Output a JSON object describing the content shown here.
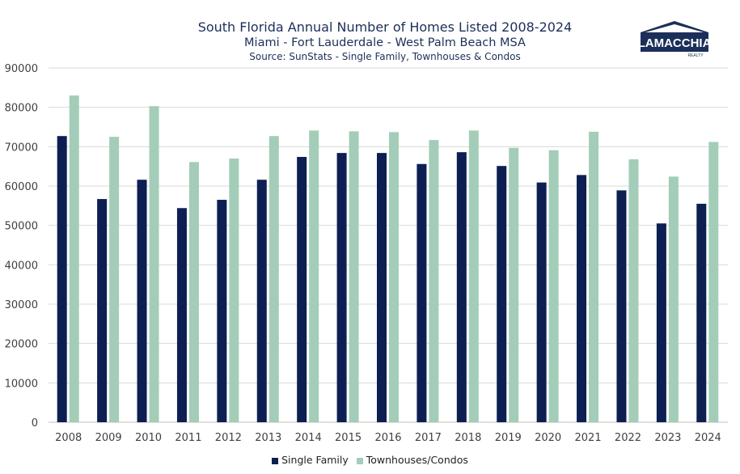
{
  "header": {
    "title": "South Florida Annual Number of Homes Listed 2008-2024",
    "subtitle": "Miami - Fort Lauderdale - West Palm Beach MSA",
    "source": "Source: SunStats - Single Family, Townhouses & Condos"
  },
  "logo": {
    "name": "LAMACCHIA",
    "tag": "REALTY",
    "icon": "house-roof-icon"
  },
  "colors": {
    "single_family": "#0d1f52",
    "townhouses": "#a3cdb8",
    "grid": "#d9d9d9",
    "axis": "#bfbfbf"
  },
  "chart_data": {
    "type": "bar",
    "title": "South Florida Annual Number of Homes Listed 2008-2024",
    "categories": [
      "2008",
      "2009",
      "2010",
      "2011",
      "2012",
      "2013",
      "2014",
      "2015",
      "2016",
      "2017",
      "2018",
      "2019",
      "2020",
      "2021",
      "2022",
      "2023",
      "2024"
    ],
    "series": [
      {
        "name": "Single Family",
        "values": [
          72700,
          56700,
          61600,
          54400,
          56500,
          61600,
          67400,
          68400,
          68400,
          65600,
          68600,
          65100,
          60900,
          62800,
          58900,
          50500,
          55500
        ]
      },
      {
        "name": "Townhouses/Condos",
        "values": [
          83000,
          72500,
          80300,
          66100,
          67000,
          72700,
          74100,
          73900,
          73700,
          71700,
          74100,
          69700,
          69100,
          73800,
          66800,
          62400,
          71200
        ]
      }
    ],
    "ylim": [
      0,
      90000
    ],
    "yticks": [
      0,
      10000,
      20000,
      30000,
      40000,
      50000,
      60000,
      70000,
      80000,
      90000
    ],
    "grid": true,
    "legend": "bottom"
  }
}
